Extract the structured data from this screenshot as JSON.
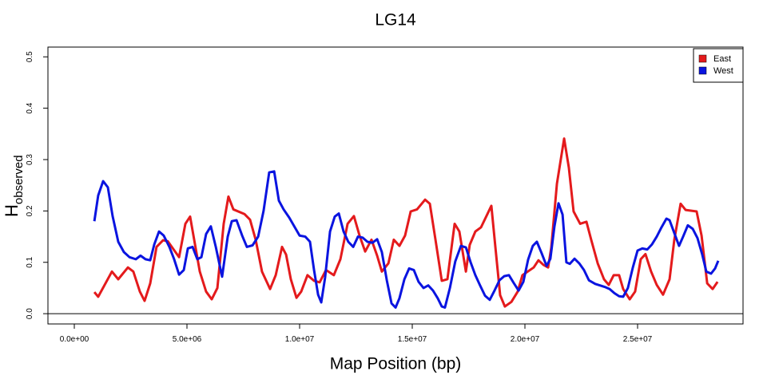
{
  "chart_data": {
    "type": "line",
    "title": "LG14",
    "xlabel": "Map Position (bp)",
    "ylabel": {
      "main": "H",
      "sub": "observed"
    },
    "xlim": [
      -1170000,
      29680000
    ],
    "ylim": [
      -0.02,
      0.519
    ],
    "xticks": [
      {
        "value": 0,
        "label": "0.0e+00"
      },
      {
        "value": 5000000,
        "label": "5.0e+06"
      },
      {
        "value": 10000000,
        "label": "1.0e+07"
      },
      {
        "value": 15000000,
        "label": "1.5e+07"
      },
      {
        "value": 20000000,
        "label": "2.0e+07"
      },
      {
        "value": 25000000,
        "label": "2.5e+07"
      }
    ],
    "yticks": [
      {
        "value": 0,
        "label": "0.0"
      },
      0.1,
      0.2,
      0.3,
      0.4,
      0.5
    ],
    "hline": 0,
    "grid": false,
    "legend": "topright",
    "series": [
      {
        "name": "East",
        "color": "#e41a1c",
        "x": [
          890000,
          1060000,
          1670000,
          1950000,
          2380000,
          2620000,
          2910000,
          3120000,
          3370000,
          3650000,
          3940000,
          4150000,
          4650000,
          4930000,
          5140000,
          5320000,
          5570000,
          5850000,
          6100000,
          6350000,
          6630000,
          6840000,
          7060000,
          7550000,
          7800000,
          8050000,
          8330000,
          8690000,
          8940000,
          9220000,
          9400000,
          9610000,
          9860000,
          10070000,
          10350000,
          10640000,
          10890000,
          11170000,
          11520000,
          11810000,
          12130000,
          12410000,
          12660000,
          12910000,
          13190000,
          13440000,
          13650000,
          13940000,
          14180000,
          14430000,
          14680000,
          14930000,
          15210000,
          15570000,
          15780000,
          16030000,
          16310000,
          16560000,
          16880000,
          17090000,
          17380000,
          17550000,
          17800000,
          18050000,
          18510000,
          18690000,
          18900000,
          19110000,
          19400000,
          19680000,
          19890000,
          20390000,
          20600000,
          20820000,
          21030000,
          21170000,
          21420000,
          21740000,
          21950000,
          22160000,
          22450000,
          22730000,
          22940000,
          23230000,
          23510000,
          23720000,
          23940000,
          24180000,
          24360000,
          24650000,
          24890000,
          25140000,
          25350000,
          25600000,
          25850000,
          26130000,
          26420000,
          26630000,
          26910000,
          27130000,
          27620000,
          27840000,
          28090000,
          28330000,
          28550000
        ],
        "values": [
          0.042,
          0.033,
          0.082,
          0.067,
          0.09,
          0.082,
          0.043,
          0.025,
          0.059,
          0.13,
          0.143,
          0.141,
          0.11,
          0.175,
          0.189,
          0.144,
          0.082,
          0.043,
          0.028,
          0.05,
          0.175,
          0.228,
          0.203,
          0.194,
          0.183,
          0.144,
          0.082,
          0.048,
          0.075,
          0.13,
          0.115,
          0.067,
          0.031,
          0.043,
          0.075,
          0.064,
          0.061,
          0.085,
          0.075,
          0.106,
          0.175,
          0.19,
          0.152,
          0.121,
          0.144,
          0.113,
          0.082,
          0.098,
          0.144,
          0.132,
          0.152,
          0.199,
          0.203,
          0.222,
          0.214,
          0.144,
          0.064,
          0.067,
          0.175,
          0.16,
          0.082,
          0.134,
          0.16,
          0.168,
          0.21,
          0.129,
          0.036,
          0.014,
          0.023,
          0.043,
          0.075,
          0.09,
          0.104,
          0.095,
          0.09,
          0.129,
          0.253,
          0.341,
          0.284,
          0.199,
          0.175,
          0.179,
          0.144,
          0.098,
          0.067,
          0.056,
          0.075,
          0.075,
          0.048,
          0.028,
          0.043,
          0.106,
          0.116,
          0.082,
          0.056,
          0.037,
          0.067,
          0.144,
          0.214,
          0.202,
          0.199,
          0.152,
          0.059,
          0.048,
          0.062
        ]
      },
      {
        "name": "West",
        "color": "#0a14e0",
        "x": [
          890000,
          1060000,
          1280000,
          1490000,
          1700000,
          1950000,
          2200000,
          2450000,
          2730000,
          2940000,
          3160000,
          3370000,
          3550000,
          3760000,
          3970000,
          4220000,
          4430000,
          4650000,
          4860000,
          5040000,
          5250000,
          5460000,
          5640000,
          5850000,
          6060000,
          6280000,
          6560000,
          6810000,
          6990000,
          7200000,
          7450000,
          7660000,
          7910000,
          8160000,
          8400000,
          8650000,
          8870000,
          9080000,
          9290000,
          9540000,
          9790000,
          10000000,
          10250000,
          10460000,
          10640000,
          10820000,
          10960000,
          11130000,
          11350000,
          11560000,
          11740000,
          11950000,
          12160000,
          12380000,
          12590000,
          12800000,
          13010000,
          13230000,
          13440000,
          13650000,
          13870000,
          14080000,
          14260000,
          14430000,
          14650000,
          14860000,
          15070000,
          15280000,
          15500000,
          15710000,
          15920000,
          16130000,
          16310000,
          16450000,
          16670000,
          16910000,
          17160000,
          17380000,
          17590000,
          17800000,
          18010000,
          18230000,
          18440000,
          18650000,
          18870000,
          19080000,
          19290000,
          19500000,
          19720000,
          19930000,
          20140000,
          20350000,
          20530000,
          20740000,
          20960000,
          21130000,
          21310000,
          21490000,
          21670000,
          21840000,
          21990000,
          22200000,
          22410000,
          22620000,
          22840000,
          23120000,
          23330000,
          23550000,
          23760000,
          23970000,
          24180000,
          24360000,
          24570000,
          24790000,
          25000000,
          25210000,
          25430000,
          25640000,
          25850000,
          26060000,
          26280000,
          26420000,
          26630000,
          26840000,
          27020000,
          27230000,
          27450000,
          27660000,
          27870000,
          28050000,
          28260000,
          28440000,
          28580000
        ],
        "values": [
          0.18,
          0.23,
          0.258,
          0.246,
          0.19,
          0.14,
          0.12,
          0.11,
          0.106,
          0.113,
          0.106,
          0.104,
          0.135,
          0.16,
          0.152,
          0.13,
          0.106,
          0.076,
          0.085,
          0.127,
          0.13,
          0.106,
          0.11,
          0.155,
          0.17,
          0.13,
          0.072,
          0.15,
          0.18,
          0.182,
          0.152,
          0.13,
          0.133,
          0.15,
          0.2,
          0.275,
          0.277,
          0.22,
          0.203,
          0.187,
          0.168,
          0.152,
          0.15,
          0.14,
          0.085,
          0.037,
          0.022,
          0.07,
          0.16,
          0.189,
          0.195,
          0.16,
          0.14,
          0.13,
          0.15,
          0.148,
          0.14,
          0.138,
          0.145,
          0.12,
          0.065,
          0.02,
          0.012,
          0.03,
          0.067,
          0.088,
          0.085,
          0.062,
          0.05,
          0.055,
          0.045,
          0.03,
          0.014,
          0.012,
          0.05,
          0.102,
          0.132,
          0.129,
          0.1,
          0.075,
          0.055,
          0.035,
          0.027,
          0.045,
          0.065,
          0.073,
          0.075,
          0.06,
          0.045,
          0.062,
          0.105,
          0.132,
          0.14,
          0.118,
          0.093,
          0.107,
          0.17,
          0.215,
          0.193,
          0.1,
          0.097,
          0.107,
          0.098,
          0.085,
          0.065,
          0.058,
          0.055,
          0.052,
          0.048,
          0.04,
          0.034,
          0.033,
          0.05,
          0.09,
          0.123,
          0.127,
          0.125,
          0.135,
          0.15,
          0.168,
          0.185,
          0.182,
          0.157,
          0.132,
          0.15,
          0.172,
          0.165,
          0.147,
          0.115,
          0.082,
          0.078,
          0.088,
          0.103
        ]
      }
    ]
  }
}
